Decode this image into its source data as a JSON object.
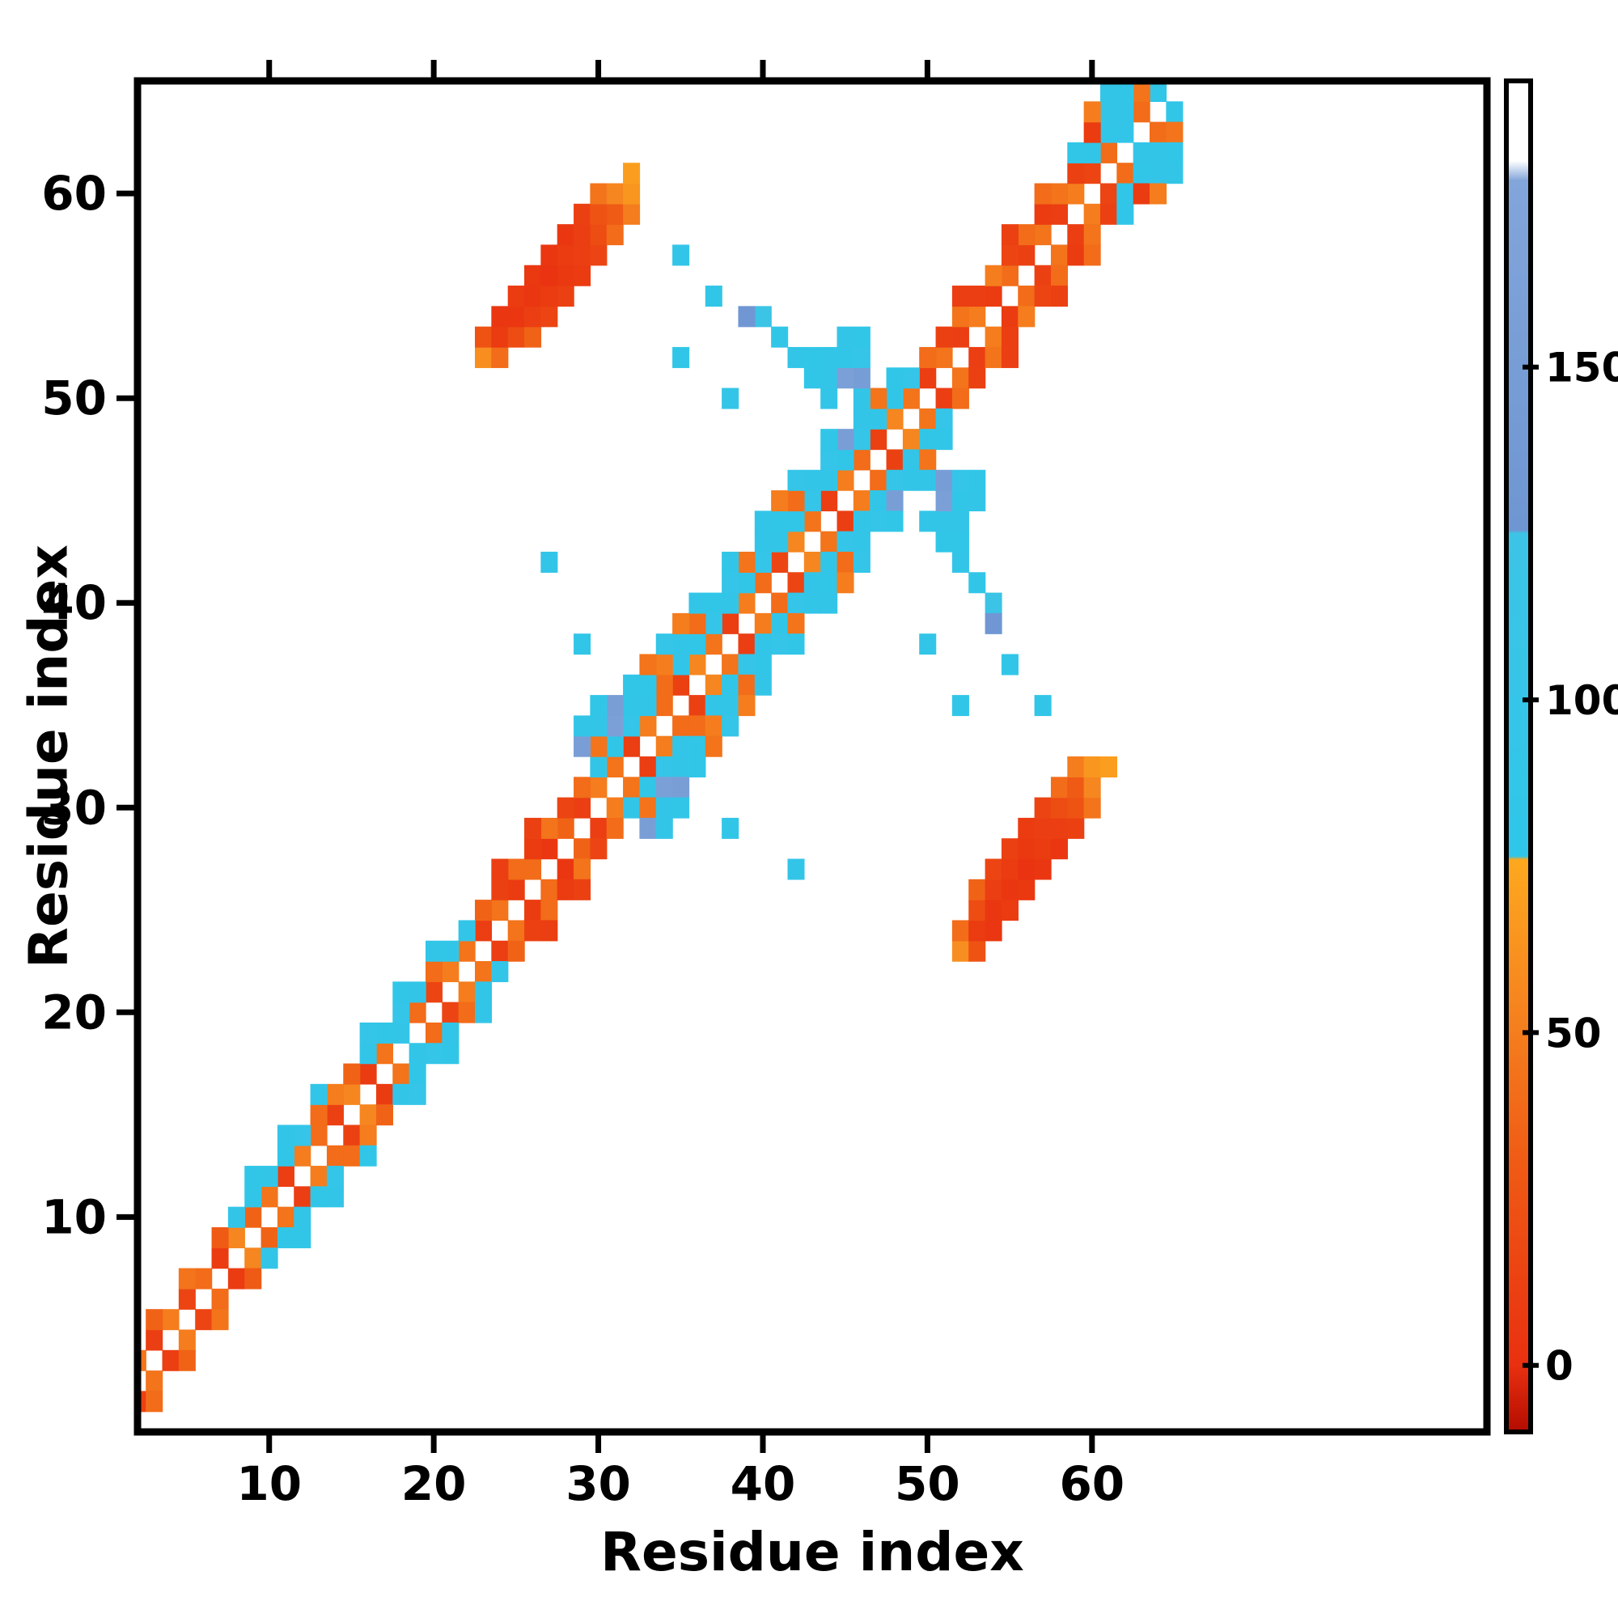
{
  "figure": {
    "background": "#ffffff",
    "frame_color": "#000000"
  },
  "chart_data": {
    "type": "heatmap",
    "title": "",
    "xlabel": "Residue index",
    "ylabel": "Residue index",
    "xticks": [
      10,
      20,
      30,
      40,
      50,
      60
    ],
    "yticks": [
      10,
      20,
      30,
      40,
      50,
      60
    ],
    "xlim": [
      2,
      84
    ],
    "ylim": [
      -0.5,
      65.5
    ],
    "grid": false,
    "legend": "none",
    "symmetric": true,
    "colorbar": {
      "position": "right",
      "ticks": [
        0,
        50,
        100,
        150
      ],
      "vmin": -10,
      "vmax": 193,
      "stops": [
        [
          -10,
          "#b30c00"
        ],
        [
          0,
          "#e93010"
        ],
        [
          30,
          "#ef5a15"
        ],
        [
          55,
          "#f6861f"
        ],
        [
          76,
          "#fda81f"
        ],
        [
          76.5,
          "#2fc6e9"
        ],
        [
          125,
          "#3cc4e6"
        ],
        [
          125.5,
          "#6e96d2"
        ],
        [
          178,
          "#82a5da"
        ],
        [
          181,
          "#ffffff"
        ],
        [
          193,
          "#ffffff"
        ]
      ]
    },
    "cells": [
      [
        1,
        2,
        12
      ],
      [
        2,
        3,
        45
      ],
      [
        3,
        4,
        10
      ],
      [
        4,
        5,
        50
      ],
      [
        5,
        6,
        15
      ],
      [
        6,
        7,
        40
      ],
      [
        7,
        8,
        8
      ],
      [
        8,
        9,
        55
      ],
      [
        9,
        10,
        35
      ],
      [
        10,
        11,
        45
      ],
      [
        11,
        12,
        10
      ],
      [
        12,
        13,
        50
      ],
      [
        13,
        14,
        40
      ],
      [
        14,
        15,
        12
      ],
      [
        15,
        16,
        55
      ],
      [
        16,
        17,
        8
      ],
      [
        17,
        18,
        45
      ],
      [
        18,
        19,
        90
      ],
      [
        19,
        20,
        40
      ],
      [
        20,
        21,
        15
      ],
      [
        21,
        22,
        50
      ],
      [
        22,
        23,
        45
      ],
      [
        23,
        24,
        10
      ],
      [
        24,
        25,
        45
      ],
      [
        25,
        26,
        8
      ],
      [
        26,
        27,
        40
      ],
      [
        27,
        28,
        5
      ],
      [
        28,
        29,
        35
      ],
      [
        29,
        30,
        10
      ],
      [
        30,
        31,
        50
      ],
      [
        31,
        32,
        45
      ],
      [
        32,
        33,
        10
      ],
      [
        33,
        34,
        50
      ],
      [
        34,
        35,
        40
      ],
      [
        35,
        36,
        12
      ],
      [
        36,
        37,
        55
      ],
      [
        37,
        38,
        45
      ],
      [
        38,
        39,
        10
      ],
      [
        39,
        40,
        50
      ],
      [
        40,
        41,
        40
      ],
      [
        41,
        42,
        15
      ],
      [
        42,
        43,
        55
      ],
      [
        43,
        44,
        45
      ],
      [
        44,
        45,
        10
      ],
      [
        45,
        46,
        50
      ],
      [
        46,
        47,
        40
      ],
      [
        47,
        48,
        12
      ],
      [
        48,
        49,
        55
      ],
      [
        49,
        50,
        45
      ],
      [
        50,
        51,
        10
      ],
      [
        51,
        52,
        45
      ],
      [
        52,
        53,
        10
      ],
      [
        53,
        54,
        50
      ],
      [
        54,
        55,
        8
      ],
      [
        55,
        56,
        40
      ],
      [
        56,
        57,
        12
      ],
      [
        57,
        58,
        45
      ],
      [
        58,
        59,
        10
      ],
      [
        59,
        60,
        50
      ],
      [
        60,
        61,
        15
      ],
      [
        61,
        62,
        40
      ],
      [
        62,
        63,
        90
      ],
      [
        63,
        64,
        40
      ],
      [
        64,
        65,
        85
      ],
      [
        1,
        3,
        40
      ],
      [
        3,
        5,
        35
      ],
      [
        5,
        7,
        45
      ],
      [
        7,
        9,
        30
      ],
      [
        8,
        10,
        90
      ],
      [
        9,
        11,
        85
      ],
      [
        10,
        12,
        90
      ],
      [
        11,
        13,
        85
      ],
      [
        12,
        14,
        95
      ],
      [
        13,
        15,
        40
      ],
      [
        14,
        16,
        50
      ],
      [
        15,
        17,
        35
      ],
      [
        16,
        18,
        90
      ],
      [
        17,
        19,
        85
      ],
      [
        18,
        20,
        95
      ],
      [
        19,
        21,
        90
      ],
      [
        20,
        22,
        40
      ],
      [
        21,
        23,
        85
      ],
      [
        22,
        24,
        90
      ],
      [
        23,
        25,
        35
      ],
      [
        24,
        26,
        12
      ],
      [
        25,
        27,
        40
      ],
      [
        26,
        28,
        8
      ],
      [
        27,
        29,
        45
      ],
      [
        28,
        30,
        15
      ],
      [
        29,
        31,
        40
      ],
      [
        30,
        32,
        90
      ],
      [
        31,
        33,
        85
      ],
      [
        32,
        34,
        95
      ],
      [
        33,
        35,
        90
      ],
      [
        34,
        36,
        40
      ],
      [
        35,
        37,
        90
      ],
      [
        36,
        38,
        85
      ],
      [
        37,
        39,
        95
      ],
      [
        38,
        40,
        90
      ],
      [
        39,
        41,
        85
      ],
      [
        40,
        42,
        95
      ],
      [
        41,
        43,
        90
      ],
      [
        42,
        44,
        85
      ],
      [
        43,
        45,
        95
      ],
      [
        44,
        46,
        90
      ],
      [
        45,
        47,
        85
      ],
      [
        46,
        48,
        95
      ],
      [
        47,
        49,
        90
      ],
      [
        48,
        50,
        85
      ],
      [
        49,
        51,
        95
      ],
      [
        50,
        52,
        40
      ],
      [
        51,
        53,
        12
      ],
      [
        52,
        54,
        45
      ],
      [
        53,
        55,
        10
      ],
      [
        54,
        56,
        50
      ],
      [
        55,
        57,
        15
      ],
      [
        56,
        58,
        40
      ],
      [
        57,
        59,
        8
      ],
      [
        58,
        60,
        45
      ],
      [
        59,
        61,
        12
      ],
      [
        60,
        62,
        85
      ],
      [
        61,
        63,
        85
      ],
      [
        62,
        64,
        90
      ],
      [
        63,
        65,
        45
      ],
      [
        9,
        12,
        85
      ],
      [
        11,
        14,
        90
      ],
      [
        13,
        16,
        85
      ],
      [
        16,
        19,
        95
      ],
      [
        18,
        21,
        85
      ],
      [
        20,
        23,
        90
      ],
      [
        24,
        27,
        10
      ],
      [
        26,
        29,
        12
      ],
      [
        30,
        33,
        45
      ],
      [
        31,
        34,
        160
      ],
      [
        32,
        35,
        90
      ],
      [
        33,
        36,
        85
      ],
      [
        34,
        37,
        50
      ],
      [
        35,
        38,
        90
      ],
      [
        36,
        39,
        40
      ],
      [
        37,
        40,
        85
      ],
      [
        38,
        41,
        95
      ],
      [
        39,
        42,
        45
      ],
      [
        40,
        43,
        90
      ],
      [
        41,
        44,
        85
      ],
      [
        42,
        45,
        40
      ],
      [
        43,
        46,
        90
      ],
      [
        44,
        47,
        95
      ],
      [
        45,
        48,
        155
      ],
      [
        46,
        49,
        90
      ],
      [
        47,
        50,
        45
      ],
      [
        48,
        51,
        85
      ],
      [
        52,
        55,
        10
      ],
      [
        55,
        58,
        12
      ],
      [
        57,
        60,
        40
      ],
      [
        59,
        62,
        85
      ],
      [
        60,
        63,
        8
      ],
      [
        61,
        64,
        90
      ],
      [
        62,
        65,
        85
      ],
      [
        29,
        33,
        155
      ],
      [
        30,
        34,
        90
      ],
      [
        31,
        35,
        155
      ],
      [
        32,
        36,
        85
      ],
      [
        33,
        37,
        45
      ],
      [
        34,
        38,
        95
      ],
      [
        35,
        39,
        50
      ],
      [
        36,
        40,
        90
      ],
      [
        38,
        42,
        85
      ],
      [
        40,
        44,
        90
      ],
      [
        41,
        45,
        50
      ],
      [
        42,
        46,
        95
      ],
      [
        44,
        48,
        85
      ],
      [
        46,
        50,
        90
      ],
      [
        60,
        64,
        50
      ],
      [
        61,
        65,
        90
      ],
      [
        29,
        34,
        90
      ],
      [
        30,
        35,
        85
      ],
      [
        23,
        52,
        60
      ],
      [
        24,
        52,
        40
      ],
      [
        23,
        53,
        25
      ],
      [
        24,
        53,
        8
      ],
      [
        25,
        53,
        20
      ],
      [
        26,
        53,
        35
      ],
      [
        24,
        54,
        5
      ],
      [
        25,
        54,
        5
      ],
      [
        26,
        54,
        10
      ],
      [
        27,
        54,
        15
      ],
      [
        25,
        55,
        8
      ],
      [
        26,
        55,
        4
      ],
      [
        27,
        55,
        8
      ],
      [
        28,
        55,
        12
      ],
      [
        26,
        56,
        6
      ],
      [
        27,
        56,
        3
      ],
      [
        28,
        56,
        6
      ],
      [
        29,
        56,
        8
      ],
      [
        27,
        57,
        5
      ],
      [
        28,
        57,
        8
      ],
      [
        29,
        57,
        10
      ],
      [
        30,
        57,
        15
      ],
      [
        28,
        58,
        5
      ],
      [
        29,
        58,
        10
      ],
      [
        30,
        58,
        20
      ],
      [
        31,
        58,
        40
      ],
      [
        29,
        59,
        12
      ],
      [
        30,
        59,
        25
      ],
      [
        31,
        59,
        30
      ],
      [
        32,
        59,
        50
      ],
      [
        30,
        60,
        45
      ],
      [
        31,
        60,
        55
      ],
      [
        32,
        60,
        65
      ],
      [
        32,
        61,
        70
      ],
      [
        44,
        50,
        90
      ],
      [
        43,
        51,
        85
      ],
      [
        44,
        51,
        90
      ],
      [
        45,
        51,
        160
      ],
      [
        46,
        51,
        150
      ],
      [
        43,
        52,
        85
      ],
      [
        44,
        52,
        90
      ],
      [
        45,
        52,
        85
      ],
      [
        46,
        52,
        95
      ],
      [
        45,
        53,
        90
      ],
      [
        46,
        53,
        85
      ],
      [
        42,
        52,
        90
      ],
      [
        41,
        53,
        85
      ],
      [
        40,
        54,
        120
      ],
      [
        39,
        54,
        130
      ],
      [
        35,
        57,
        90
      ],
      [
        37,
        55,
        85
      ],
      [
        27,
        42,
        90
      ],
      [
        29,
        38,
        85
      ],
      [
        35,
        52,
        85
      ],
      [
        38,
        50,
        90
      ]
    ]
  }
}
